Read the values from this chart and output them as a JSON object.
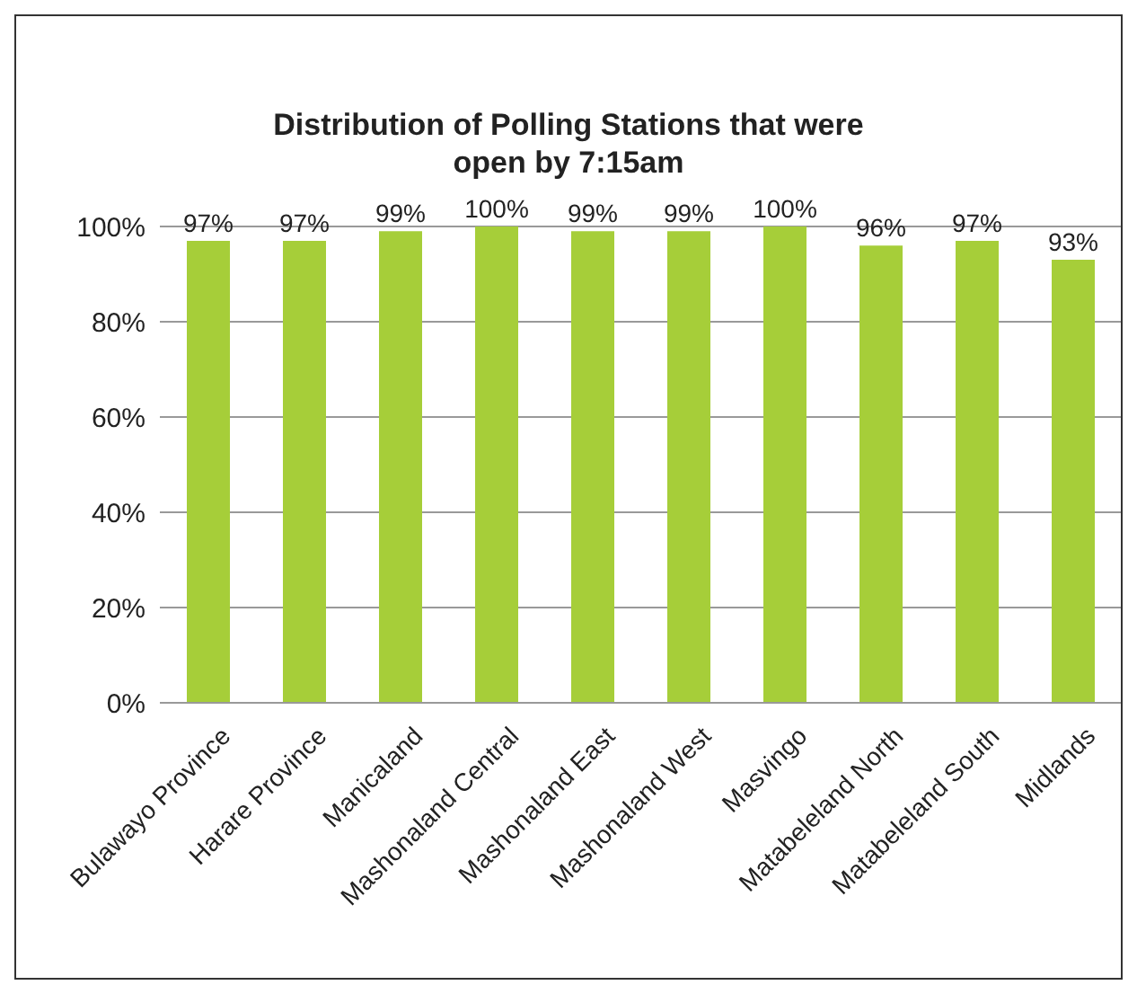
{
  "chart_data": {
    "type": "bar",
    "title": "Distribution of Polling Stations that were open by 7:15am",
    "categories": [
      "Bulawayo Province",
      "Harare Province",
      "Manicaland",
      "Mashonaland Central",
      "Mashonaland East",
      "Mashonaland West",
      "Masvingo",
      "Matabeleland North",
      "Matabeleland South",
      "Midlands"
    ],
    "values": [
      97,
      97,
      99,
      100,
      99,
      99,
      100,
      96,
      97,
      93
    ],
    "value_labels": [
      "97%",
      "97%",
      "99%",
      "100%",
      "99%",
      "99%",
      "100%",
      "96%",
      "97%",
      "93%"
    ],
    "color": "#a6ce39",
    "ylim": [
      0,
      100
    ],
    "yticks": [
      {
        "value": 0,
        "label": "0%"
      },
      {
        "value": 20,
        "label": "20%"
      },
      {
        "value": 40,
        "label": "40%"
      },
      {
        "value": 60,
        "label": "60%"
      },
      {
        "value": 80,
        "label": "80%"
      },
      {
        "value": 100,
        "label": "100%"
      }
    ],
    "grid": "y"
  }
}
